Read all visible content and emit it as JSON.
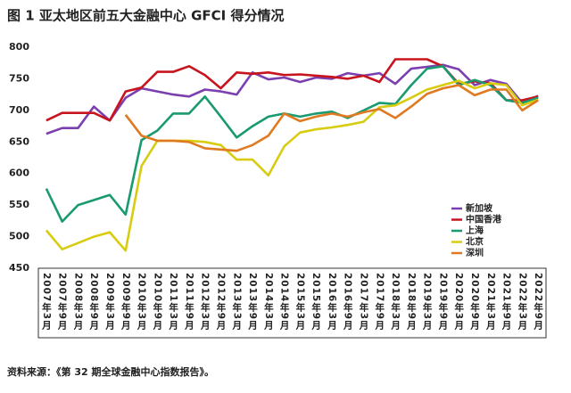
{
  "chart_data": {
    "type": "line",
    "title": "图 1  亚太地区前五大金融中心 GFCI 得分情况",
    "source": "资料来源：《第 32 期全球金融中心指数报告》。",
    "categories": [
      "2007年3月",
      "2007年9月",
      "2008年3月",
      "2008年9月",
      "2009年3月",
      "2009年9月",
      "2010年3月",
      "2010年9月",
      "2011年3月",
      "2011年9月",
      "2012年3月",
      "2012年9月",
      "2013年3月",
      "2013年9月",
      "2014年3月",
      "2014年9月",
      "2015年3月",
      "2015年9月",
      "2016年3月",
      "2016年9月",
      "2017年3月",
      "2017年9月",
      "2018年3月",
      "2018年9月",
      "2019年3月",
      "2019年9月",
      "2020年3月",
      "2020年9月",
      "2021年3月",
      "2021年9月",
      "2022年3月",
      "2022年9月"
    ],
    "series": [
      {
        "name": "新加坡",
        "color": "#7b3fb0",
        "values": [
          663,
          672,
          672,
          706,
          684,
          720,
          735,
          730,
          725,
          722,
          733,
          730,
          725,
          760,
          749,
          752,
          745,
          752,
          750,
          759,
          755,
          759,
          742,
          766,
          769,
          772,
          765,
          740,
          748,
          742,
          712,
          723
        ]
      },
      {
        "name": "中国香港",
        "color": "#c8141e",
        "values": [
          684,
          696,
          696,
          696,
          684,
          730,
          736,
          761,
          761,
          770,
          756,
          735,
          760,
          758,
          760,
          756,
          757,
          755,
          753,
          750,
          755,
          745,
          781,
          781,
          781,
          770,
          742,
          746,
          743,
          716,
          716,
          722
        ]
      },
      {
        "name": "上海",
        "color": "#1a9a70",
        "values": [
          576,
          524,
          550,
          558,
          566,
          535,
          653,
          668,
          695,
          695,
          722,
          690,
          657,
          675,
          690,
          695,
          690,
          695,
          698,
          688,
          700,
          712,
          710,
          740,
          766,
          770,
          740,
          748,
          740,
          716,
          712,
          720
        ]
      },
      {
        "name": "北京",
        "color": "#d8cc10",
        "values": [
          510,
          480,
          490,
          500,
          507,
          478,
          612,
          652,
          652,
          652,
          650,
          645,
          622,
          622,
          597,
          643,
          665,
          670,
          673,
          677,
          682,
          705,
          708,
          720,
          733,
          740,
          747,
          735,
          743,
          740,
          708,
          717
        ]
      },
      {
        "name": "深圳",
        "color": "#e07a20",
        "values": [
          null,
          null,
          null,
          null,
          null,
          693,
          660,
          652,
          652,
          650,
          640,
          638,
          636,
          645,
          660,
          695,
          683,
          690,
          695,
          690,
          697,
          702,
          688,
          706,
          726,
          735,
          740,
          724,
          733,
          733,
          700,
          716
        ]
      }
    ],
    "ylim": [
      450,
      800
    ],
    "yticks": [
      450,
      500,
      550,
      600,
      650,
      700,
      750,
      800
    ]
  }
}
